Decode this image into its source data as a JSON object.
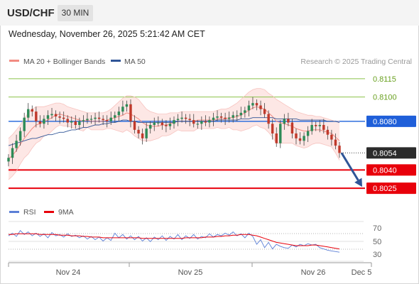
{
  "header": {
    "symbol": "USD/CHF",
    "interval": "30 MIN",
    "datetime": "Wednesday, November 26, 2025 5:21:42 AM CET"
  },
  "colors": {
    "bollinger": "#f28b82",
    "ma50": "#2f5597",
    "up": "#2e8b57",
    "down": "#c0392b",
    "rsi": "#5b7fd6",
    "rsi_ma": "#e8000b",
    "green_level": "#8bc34a",
    "blue_level": "#2f6fde",
    "red_level": "#e8000b",
    "arrow": "#2f5597"
  },
  "chart_data": [
    {
      "type": "candlestick",
      "legend": [
        {
          "label": "MA 20 + Bollinger Bands",
          "color": "#f28b82"
        },
        {
          "label": "MA 50",
          "color": "#2f5597"
        }
      ],
      "attribution": "Research © 2025 Trading Central",
      "x_ticks": [
        "Nov 24",
        "Nov 25",
        "Nov 26",
        "Dec 5"
      ],
      "y_range": [
        0.8014,
        0.8126
      ],
      "current_price": "0.8054",
      "levels": [
        {
          "label": "0.8115",
          "value": 0.8115,
          "kind": "resistance-2"
        },
        {
          "label": "0.8100",
          "value": 0.81,
          "kind": "resistance-1"
        },
        {
          "label": "0.8080",
          "value": 0.808,
          "kind": "pivot"
        },
        {
          "label": "0.8040",
          "value": 0.804,
          "kind": "support-1"
        },
        {
          "label": "0.8025",
          "value": 0.8025,
          "kind": "support-2"
        }
      ],
      "price": [
        0.805,
        0.8058,
        0.8064,
        0.8072,
        0.8083,
        0.809,
        0.8088,
        0.808,
        0.8078,
        0.8082,
        0.8085,
        0.8086,
        0.8084,
        0.8083,
        0.8082,
        0.8079,
        0.808,
        0.8077,
        0.808,
        0.8081,
        0.8082,
        0.8082,
        0.8083,
        0.8082,
        0.8081,
        0.808,
        0.8083,
        0.8085,
        0.8088,
        0.8092,
        0.8094,
        0.808,
        0.8073,
        0.807,
        0.8066,
        0.8074,
        0.8077,
        0.8079,
        0.8079,
        0.8077,
        0.8076,
        0.8078,
        0.8081,
        0.8082,
        0.8083,
        0.8082,
        0.8081,
        0.8078,
        0.8078,
        0.808,
        0.8079,
        0.8081,
        0.8083,
        0.8084,
        0.8083,
        0.8082,
        0.8083,
        0.8085,
        0.8085,
        0.8087,
        0.8089,
        0.8093,
        0.8095,
        0.8093,
        0.809,
        0.8086,
        0.8078,
        0.807,
        0.8062,
        0.8078,
        0.8082,
        0.8079,
        0.807,
        0.8066,
        0.8064,
        0.8068,
        0.8072,
        0.8077,
        0.8076,
        0.8077,
        0.8073,
        0.8069,
        0.8065,
        0.806,
        0.8054
      ],
      "ma20": [
        0.8049,
        0.8052,
        0.8056,
        0.8061,
        0.8066,
        0.807,
        0.8074,
        0.8077,
        0.8078,
        0.808,
        0.8081,
        0.8083,
        0.8085,
        0.8086,
        0.8085,
        0.8084,
        0.8083,
        0.8082,
        0.8081,
        0.808,
        0.8081,
        0.808,
        0.808,
        0.808,
        0.808,
        0.8081,
        0.8082,
        0.8083,
        0.8084,
        0.8085,
        0.8087,
        0.8086,
        0.8084,
        0.8082,
        0.8079,
        0.8077,
        0.8076,
        0.8076,
        0.8076,
        0.8077,
        0.8077,
        0.8078,
        0.8079,
        0.808,
        0.808,
        0.808,
        0.808,
        0.808,
        0.8081,
        0.8081,
        0.8081,
        0.8081,
        0.8081,
        0.8082,
        0.8082,
        0.8082,
        0.8083,
        0.8083,
        0.8084,
        0.8085,
        0.8087,
        0.8089,
        0.8091,
        0.8092,
        0.8091,
        0.809,
        0.8087,
        0.8084,
        0.808,
        0.8079,
        0.8078,
        0.8077,
        0.8076,
        0.8074,
        0.8073,
        0.8072,
        0.8072,
        0.8073,
        0.8073,
        0.8073,
        0.8072,
        0.8071,
        0.807,
        0.8067,
        0.8064
      ],
      "bb_upper": [
        0.8066,
        0.8069,
        0.8073,
        0.8077,
        0.8082,
        0.8087,
        0.809,
        0.8092,
        0.8092,
        0.8092,
        0.8093,
        0.8094,
        0.8095,
        0.8095,
        0.8094,
        0.8092,
        0.8091,
        0.809,
        0.8089,
        0.8088,
        0.8087,
        0.8087,
        0.8087,
        0.8087,
        0.8087,
        0.8088,
        0.809,
        0.8093,
        0.8096,
        0.8099,
        0.8101,
        0.8101,
        0.81,
        0.8098,
        0.8094,
        0.809,
        0.8088,
        0.8087,
        0.8086,
        0.8086,
        0.8086,
        0.8087,
        0.8087,
        0.8087,
        0.8088,
        0.8088,
        0.8088,
        0.8088,
        0.8088,
        0.8088,
        0.8088,
        0.8088,
        0.8088,
        0.8089,
        0.809,
        0.809,
        0.8091,
        0.8093,
        0.8095,
        0.8098,
        0.8101,
        0.8104,
        0.8106,
        0.8107,
        0.8107,
        0.8106,
        0.8103,
        0.8101,
        0.8098,
        0.8096,
        0.8094,
        0.8092,
        0.809,
        0.8088,
        0.8087,
        0.8086,
        0.8085,
        0.8085,
        0.8084,
        0.8084,
        0.8083,
        0.8082,
        0.8081,
        0.808,
        0.808
      ],
      "bb_lower": [
        0.8032,
        0.8035,
        0.8039,
        0.8045,
        0.805,
        0.8053,
        0.8058,
        0.8062,
        0.8064,
        0.8068,
        0.8069,
        0.8072,
        0.8075,
        0.8077,
        0.8076,
        0.8076,
        0.8075,
        0.8074,
        0.8073,
        0.8072,
        0.8075,
        0.8073,
        0.8073,
        0.8073,
        0.8073,
        0.8074,
        0.8074,
        0.8073,
        0.8072,
        0.8071,
        0.8073,
        0.8071,
        0.8068,
        0.8066,
        0.8064,
        0.8064,
        0.8064,
        0.8065,
        0.8066,
        0.8068,
        0.8068,
        0.8069,
        0.8071,
        0.8073,
        0.8072,
        0.8072,
        0.8072,
        0.8072,
        0.8074,
        0.8074,
        0.8074,
        0.8074,
        0.8074,
        0.8075,
        0.8074,
        0.8074,
        0.8075,
        0.8073,
        0.8073,
        0.8072,
        0.8073,
        0.8074,
        0.8076,
        0.8077,
        0.8075,
        0.8074,
        0.8071,
        0.8067,
        0.8062,
        0.8062,
        0.8062,
        0.8062,
        0.8062,
        0.806,
        0.8059,
        0.8058,
        0.8059,
        0.8061,
        0.8062,
        0.8062,
        0.8061,
        0.806,
        0.8059,
        0.8054,
        0.8048
      ],
      "ma50": [
        0.806,
        0.8061,
        0.8062,
        0.8063,
        0.8064,
        0.8065,
        0.8066,
        0.8066,
        0.8067,
        0.8068,
        0.8069,
        0.8069,
        0.807,
        0.8071,
        0.8071,
        0.8072,
        0.8073,
        0.8073,
        0.8074,
        0.8075,
        0.8075,
        0.8076,
        0.8077,
        0.8077,
        0.8078,
        0.8078,
        0.8079,
        0.8079,
        0.808,
        0.8081,
        0.8081,
        0.808,
        0.808,
        0.8079,
        0.8079,
        0.8079,
        0.8079,
        0.8079,
        0.8079,
        0.8079,
        0.8079,
        0.8079,
        0.8079,
        0.808,
        0.808,
        0.808,
        0.808,
        0.808,
        0.808,
        0.808,
        0.808,
        0.808,
        0.808,
        0.8081,
        0.8081,
        0.8081,
        0.8081,
        0.8081,
        0.8081,
        0.8082,
        0.8082,
        0.8082,
        0.8083,
        0.8083,
        0.8083,
        0.8083,
        0.8083,
        0.8083,
        0.8082,
        0.8082,
        0.8082,
        0.8082,
        0.8082,
        0.8082,
        0.8081,
        0.8081,
        0.8081,
        0.8081,
        0.8081,
        0.8081,
        0.8081,
        0.808,
        0.808,
        0.808,
        0.8079
      ],
      "forecast": {
        "from": 0.8054,
        "to": 0.8025
      }
    },
    {
      "type": "line",
      "legend": [
        {
          "label": "RSI",
          "color": "#5b7fd6"
        },
        {
          "label": "9MA",
          "color": "#e8000b"
        }
      ],
      "y_ticks": [
        "70",
        "50",
        "30"
      ],
      "y_range": [
        25,
        80
      ],
      "rsi": [
        58,
        62,
        57,
        66,
        60,
        64,
        58,
        62,
        57,
        61,
        55,
        63,
        58,
        60,
        56,
        61,
        57,
        59,
        55,
        58,
        53,
        57,
        52,
        56,
        50,
        55,
        51,
        62,
        55,
        60,
        53,
        58,
        52,
        57,
        50,
        55,
        49,
        56,
        52,
        58,
        51,
        57,
        53,
        60,
        52,
        58,
        54,
        60,
        53,
        57,
        55,
        61,
        56,
        60,
        58,
        62,
        59,
        64,
        58,
        61,
        55,
        62,
        57,
        45,
        52,
        40,
        48,
        38,
        45,
        42,
        40,
        39,
        44,
        41,
        45,
        43,
        46,
        44,
        45,
        40,
        38,
        36,
        35,
        34,
        33
      ],
      "ma9": [
        60,
        60,
        61,
        61,
        61,
        61,
        61,
        61,
        60,
        60,
        60,
        60,
        60,
        59,
        59,
        59,
        58,
        58,
        58,
        57,
        57,
        56,
        56,
        56,
        55,
        55,
        55,
        55,
        55,
        55,
        55,
        55,
        55,
        55,
        54,
        54,
        54,
        54,
        54,
        54,
        54,
        54,
        54,
        54,
        54,
        55,
        55,
        55,
        55,
        55,
        56,
        56,
        56,
        57,
        57,
        58,
        58,
        59,
        59,
        60,
        60,
        60,
        59,
        58,
        56,
        54,
        52,
        50,
        48,
        47,
        46,
        45,
        44,
        43,
        43,
        43,
        43,
        44,
        44,
        43,
        42,
        41,
        40,
        39,
        38
      ]
    }
  ]
}
